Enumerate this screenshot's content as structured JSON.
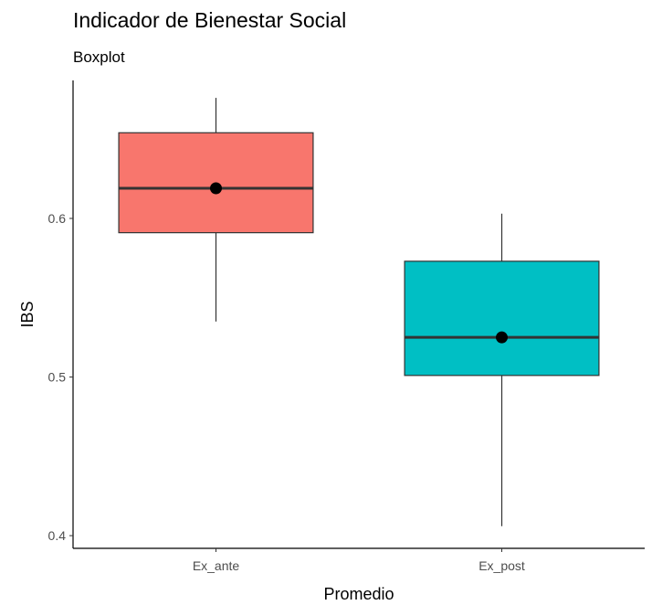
{
  "chart_data": {
    "type": "boxplot",
    "title": "Indicador de Bienestar Social",
    "subtitle": "Boxplot",
    "x_label": "Promedio",
    "y_label": "IBS",
    "categories": [
      "Ex_ante",
      "Ex_post"
    ],
    "boxes": [
      {
        "whisker_low": 0.535,
        "q1": 0.591,
        "median": 0.619,
        "q3": 0.654,
        "whisker_high": 0.676,
        "mean": 0.619,
        "color": "#f8766d"
      },
      {
        "whisker_low": 0.406,
        "q1": 0.501,
        "median": 0.525,
        "q3": 0.573,
        "whisker_high": 0.603,
        "mean": 0.525,
        "color": "#00bfc4"
      }
    ],
    "ylim": [
      0.392,
      0.687
    ],
    "yticks": [
      0.4,
      0.5,
      0.6
    ]
  }
}
